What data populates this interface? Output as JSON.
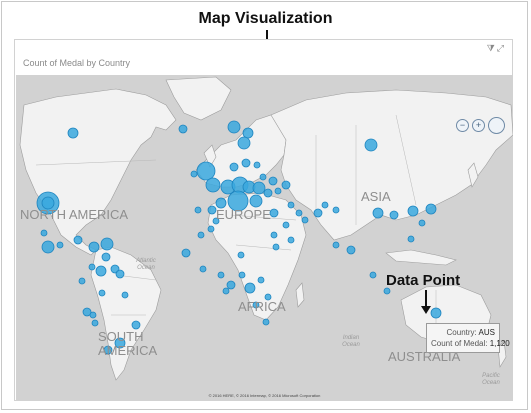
{
  "annotations": {
    "top_callout": "Map  Visualization",
    "data_point_callout": "Data Point"
  },
  "visual": {
    "title": "Count of Medal by Country",
    "header_icons": [
      "filter-icon",
      "expand-icon"
    ]
  },
  "map": {
    "continent_labels": {
      "north_america": "NORTH AMERICA",
      "south_america": "SOUTH AMERICA",
      "europe": "EUROPE",
      "asia": "ASIA",
      "africa": "AFRICA",
      "australia": "AUSTRALIA"
    },
    "ocean_labels": {
      "atlantic": "Atlantic Ocean",
      "indian": "Indian Ocean",
      "pacific": "Pacific Ocean"
    },
    "controls": {
      "zoom_out": "−",
      "zoom_in": "+"
    },
    "copyright": "© 2016 HERE, © 2016 Intermap, © 2016 Microsoft Corporation",
    "bubble_color": "#3aa8de"
  },
  "tooltip": {
    "country_key": "Country:",
    "country_value": "AUS",
    "count_key": "Count of Medal:",
    "count_value": "1,120"
  }
}
